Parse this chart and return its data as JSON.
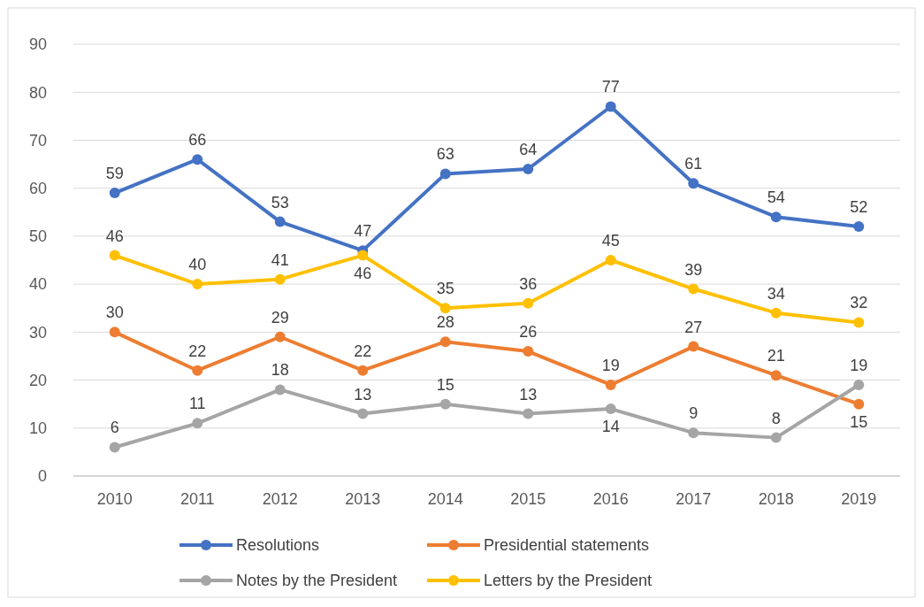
{
  "chart_data": {
    "type": "line",
    "categories": [
      "2010",
      "2011",
      "2012",
      "2013",
      "2014",
      "2015",
      "2016",
      "2017",
      "2018",
      "2019"
    ],
    "series": [
      {
        "name": "Resolutions",
        "color": "#4472c4",
        "values": [
          59,
          66,
          53,
          47,
          63,
          64,
          77,
          61,
          54,
          52
        ]
      },
      {
        "name": "Presidential statements",
        "color": "#ed7d31",
        "values": [
          30,
          22,
          29,
          22,
          28,
          26,
          19,
          27,
          21,
          15
        ]
      },
      {
        "name": "Notes by the President",
        "color": "#a5a5a5",
        "values": [
          6,
          11,
          18,
          13,
          15,
          13,
          14,
          9,
          8,
          19
        ]
      },
      {
        "name": "Letters by the President",
        "color": "#ffc000",
        "values": [
          46,
          40,
          41,
          46,
          35,
          36,
          45,
          39,
          34,
          32
        ]
      }
    ],
    "ylim": [
      0,
      90
    ],
    "yticks": [
      0,
      10,
      20,
      30,
      40,
      50,
      60,
      70,
      80,
      90
    ],
    "grid": "y",
    "legend": "bottom",
    "marker": "circle",
    "line_style": "solid",
    "data_labels": true
  }
}
